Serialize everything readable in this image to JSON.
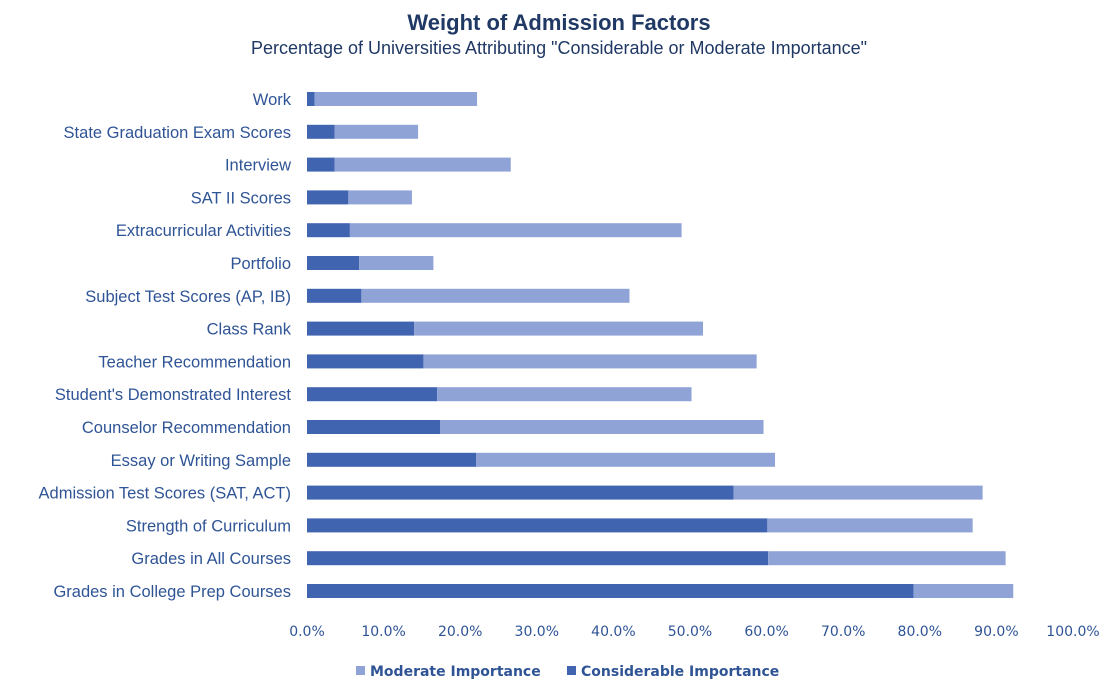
{
  "chart_data": {
    "type": "bar",
    "orientation": "horizontal",
    "stacked": true,
    "title": "Weight of Admission Factors",
    "subtitle": "Percentage of Universities Attributing \"Considerable or Moderate Importance\"",
    "categories": [
      "Work",
      "State Graduation Exam Scores",
      "Interview",
      "SAT II Scores",
      "Extracurricular Activities",
      "Portfolio",
      "Subject Test Scores (AP, IB)",
      "Class Rank",
      "Teacher Recommendation",
      "Student's Demonstrated Interest",
      "Counselor Recommendation",
      "Essay or Writing Sample",
      "Admission Test Scores (SAT, ACT)",
      "Strength of Curriculum",
      "Grades in All Courses",
      "Grades in College Prep Courses"
    ],
    "series": [
      {
        "name": "Considerable Importance",
        "color": "#4064b0",
        "values": [
          1.0,
          3.6,
          3.6,
          5.4,
          5.6,
          6.8,
          7.1,
          14.0,
          15.2,
          17.0,
          17.4,
          22.1,
          55.7,
          60.1,
          60.2,
          79.2
        ]
      },
      {
        "name": "Moderate Importance",
        "color": "#8fa3d6",
        "values": [
          21.2,
          10.9,
          23.0,
          8.3,
          43.3,
          9.7,
          35.0,
          37.7,
          43.5,
          33.2,
          42.2,
          39.0,
          32.5,
          26.8,
          31.0,
          13.0
        ]
      }
    ],
    "xlim": [
      0,
      100
    ],
    "xticks": [
      "0.0%",
      "10.0%",
      "20.0%",
      "30.0%",
      "40.0%",
      "50.0%",
      "60.0%",
      "70.0%",
      "80.0%",
      "90.0%",
      "100.0%"
    ],
    "legend": {
      "position": "bottom",
      "items": [
        "Moderate Importance",
        "Considerable Importance"
      ]
    },
    "grid": false
  }
}
